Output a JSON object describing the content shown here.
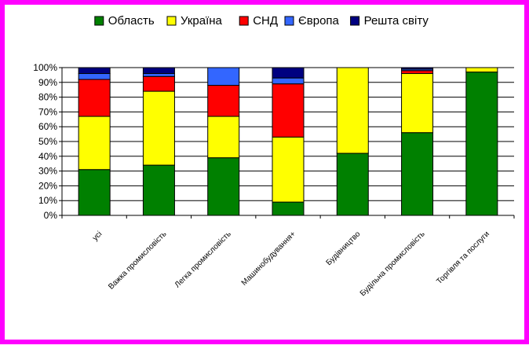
{
  "chart_data": {
    "type": "bar",
    "stacked": true,
    "normalized": true,
    "categories": [
      "усі",
      "Важка промисловість",
      "Легка промисловість",
      "Машинобудування+",
      "Будівництво",
      "Будільна промисловість",
      "Торгівля та послуги"
    ],
    "series": [
      {
        "name": "Область",
        "color": "#008000",
        "values": [
          31,
          34,
          39,
          9,
          42,
          56,
          97
        ]
      },
      {
        "name": "Україна",
        "color": "#ffff00",
        "values": [
          36,
          50,
          28,
          44,
          58,
          40,
          3
        ]
      },
      {
        "name": "СНД",
        "color": "#ff0000",
        "values": [
          25,
          10,
          21,
          36,
          0,
          2,
          0
        ]
      },
      {
        "name": "Європа",
        "color": "#3366ff",
        "values": [
          4,
          2,
          12,
          4,
          0,
          1,
          0
        ]
      },
      {
        "name": "Решта світу",
        "color": "#000080",
        "values": [
          4,
          4,
          0,
          7,
          0,
          1,
          0
        ]
      }
    ],
    "y_ticks": [
      "0%",
      "10%",
      "20%",
      "30%",
      "40%",
      "50%",
      "60%",
      "70%",
      "80%",
      "90%",
      "100%"
    ],
    "ylim": [
      0,
      100
    ],
    "grid": true,
    "legend": "top"
  }
}
